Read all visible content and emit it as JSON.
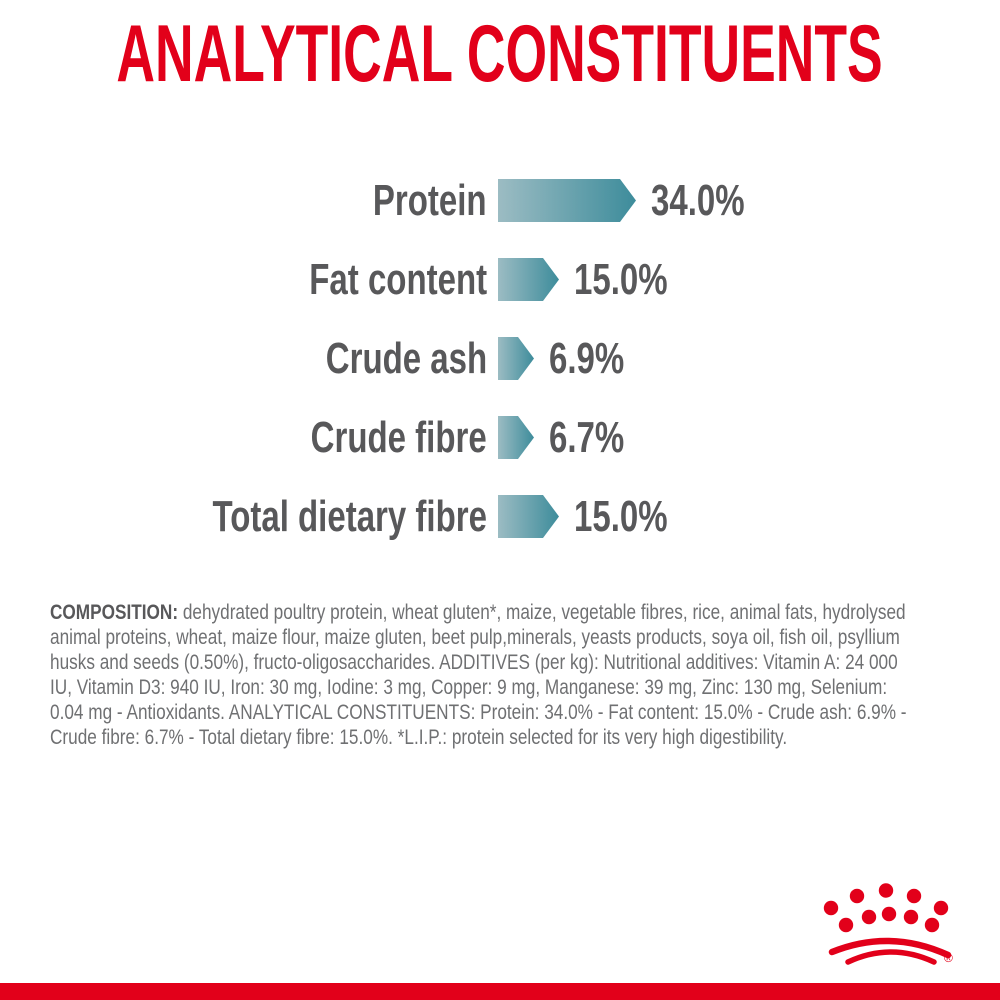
{
  "title": "ANALYTICAL CONSTITUENTS",
  "colors": {
    "red": "#e2001a",
    "barStart": "#9cbcc3",
    "barEnd": "#3d8c9b",
    "labelGray": "#58585a",
    "bodyGray": "#6f7072"
  },
  "chart_data": {
    "type": "bar",
    "orientation": "horizontal",
    "title": "ANALYTICAL CONSTITUENTS",
    "categories": [
      "Protein",
      "Fat content",
      "Crude ash",
      "Crude fibre",
      "Total dietary fibre"
    ],
    "values": [
      34.0,
      15.0,
      6.9,
      6.7,
      15.0
    ],
    "value_labels": [
      "34.0%",
      "15.0%",
      "6.9%",
      "6.7%",
      "15.0%"
    ],
    "unit": "%",
    "xlim": [
      0,
      40
    ],
    "grid": false,
    "legend": false
  },
  "rows": [
    {
      "label": "Protein",
      "value": "34.0%",
      "pct": 34.0
    },
    {
      "label": "Fat content",
      "value": "15.0%",
      "pct": 15.0
    },
    {
      "label": "Crude ash",
      "value": "6.9%",
      "pct": 6.9
    },
    {
      "label": "Crude fibre",
      "value": "6.7%",
      "pct": 6.7
    },
    {
      "label": "Total dietary fibre",
      "value": "15.0%",
      "pct": 15.0
    }
  ],
  "composition": {
    "label": "COMPOSITION:",
    "body": " dehydrated poultry protein, wheat gluten*, maize, vegetable fibres, rice, animal fats, hydrolysed animal proteins, wheat, maize flour, maize gluten, beet pulp,minerals, yeasts products, soya oil, fish oil, psyllium husks and seeds (0.50%), fructo-oligosaccharides. ADDITIVES (per kg): Nutritional additives: Vitamin A:  24 000 IU, Vitamin D3: 940 IU, Iron: 30 mg, Iodine: 3 mg, Copper: 9 mg, Manganese: 39 mg, Zinc: 130 mg, Selenium: 0.04 mg - Antioxidants. ANALYTICAL CONSTITUENTS: Protein: 34.0% - Fat content: 15.0% - Crude ash: 6.9% - Crude fibre: 6.7% - Total dietary fibre: 15.0%. *L.I.P.: protein selected for its very high digestibility."
  },
  "logo": {
    "name": "Royal Canin crown",
    "trademark": "®"
  }
}
